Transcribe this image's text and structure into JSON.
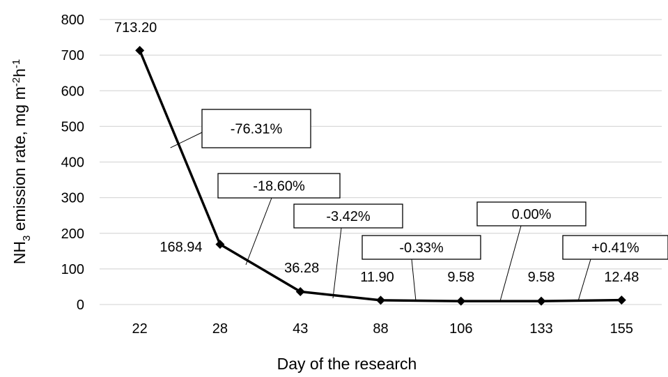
{
  "chart_data": {
    "type": "line",
    "categories": [
      "22",
      "28",
      "43",
      "88",
      "106",
      "133",
      "155"
    ],
    "series": [
      {
        "values": [
          713.2,
          168.94,
          36.28,
          11.9,
          9.58,
          9.58,
          12.48
        ]
      }
    ],
    "data_labels": [
      "713.20",
      "168.94",
      "36.28",
      "11.90",
      "9.58",
      "9.58",
      "12.48"
    ],
    "callouts": [
      "-76.31%",
      "-18.60%",
      "-3.42%",
      "-0.33%",
      "0.00%",
      "+0.41%"
    ],
    "y_ticks": [
      0,
      100,
      200,
      300,
      400,
      500,
      600,
      700,
      800
    ],
    "ylim": [
      0,
      800
    ],
    "xlabel": "Day of the research",
    "ylabel_parts": [
      "NH",
      "3",
      " emission rate,  mg m",
      "-2",
      "h",
      "-1"
    ],
    "grid": true,
    "line_color": "#000000",
    "grid_color": "#d9d9d9"
  }
}
